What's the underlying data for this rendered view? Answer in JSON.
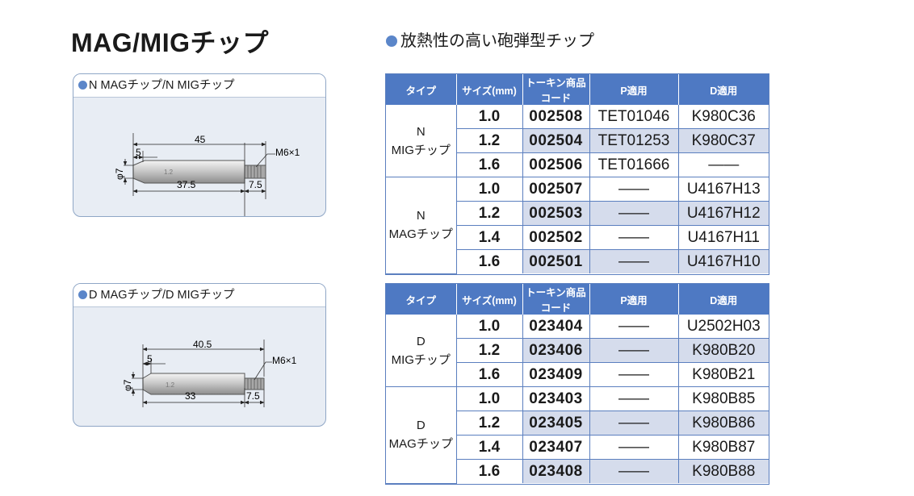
{
  "page_title": "MAG/MIGチップ",
  "section_title": "放熱性の高い砲弾型チップ",
  "panels": {
    "n": {
      "label": "N MAGチップ/N MIGチップ",
      "dims": {
        "total": "45",
        "front": "5",
        "thread": "M6×1",
        "dia": "φ7",
        "body": "37.5",
        "end": "7.5"
      }
    },
    "d": {
      "label": "D MAGチップ/D MIGチップ",
      "dims": {
        "total": "40.5",
        "front": "5",
        "thread": "M6×1",
        "dia": "φ7",
        "body": "33",
        "end": "7.5"
      }
    }
  },
  "headers": [
    "タイプ",
    "サイズ(mm)",
    "トーキン商品コード",
    "P適用",
    "D適用"
  ],
  "table1": {
    "groups": [
      {
        "type_line1": "N",
        "type_line2": "MIGチップ",
        "rows": [
          {
            "size": "1.0",
            "code": "002508",
            "p": "TET01046",
            "d": "K980C36"
          },
          {
            "size": "1.2",
            "code": "002504",
            "p": "TET01253",
            "d": "K980C37"
          },
          {
            "size": "1.6",
            "code": "002506",
            "p": "TET01666",
            "d": "――"
          }
        ]
      },
      {
        "type_line1": "N",
        "type_line2": "MAGチップ",
        "rows": [
          {
            "size": "1.0",
            "code": "002507",
            "p": "――",
            "d": "U4167H13"
          },
          {
            "size": "1.2",
            "code": "002503",
            "p": "――",
            "d": "U4167H12"
          },
          {
            "size": "1.4",
            "code": "002502",
            "p": "――",
            "d": "U4167H11"
          },
          {
            "size": "1.6",
            "code": "002501",
            "p": "――",
            "d": "U4167H10"
          }
        ]
      }
    ]
  },
  "table2": {
    "groups": [
      {
        "type_line1": "D",
        "type_line2": "MIGチップ",
        "rows": [
          {
            "size": "1.0",
            "code": "023404",
            "p": "――",
            "d": "U2502H03"
          },
          {
            "size": "1.2",
            "code": "023406",
            "p": "――",
            "d": "K980B20"
          },
          {
            "size": "1.6",
            "code": "023409",
            "p": "――",
            "d": "K980B21"
          }
        ]
      },
      {
        "type_line1": "D",
        "type_line2": "MAGチップ",
        "rows": [
          {
            "size": "1.0",
            "code": "023403",
            "p": "――",
            "d": "K980B85"
          },
          {
            "size": "1.2",
            "code": "023405",
            "p": "――",
            "d": "K980B86"
          },
          {
            "size": "1.4",
            "code": "023407",
            "p": "――",
            "d": "K980B87"
          },
          {
            "size": "1.6",
            "code": "023408",
            "p": "――",
            "d": "K980B88"
          }
        ]
      }
    ]
  }
}
